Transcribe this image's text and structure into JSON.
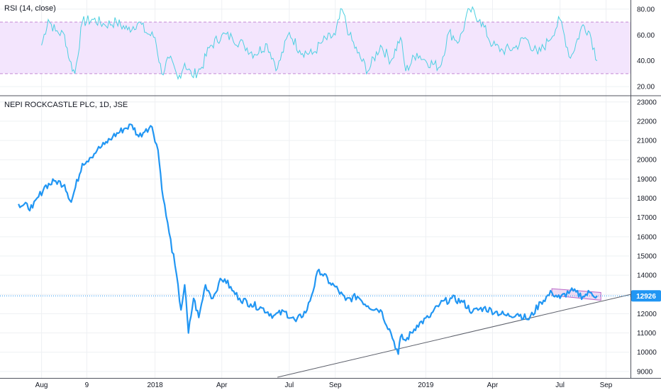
{
  "colors": {
    "price_line": "#2196f3",
    "rsi_line": "#4dd0e1",
    "rsi_band_fill": "#f3e5fd",
    "rsi_band_border": "#c58bd6",
    "grid": "#eef0f3",
    "axis_border": "#50535e",
    "trendline": "#5d606b",
    "channel_fill": "#e1bee7",
    "channel_border": "#ba68c8",
    "last_price_bg": "#2196f3",
    "last_price_line": "#2196f3"
  },
  "chart_data": [
    {
      "type": "line",
      "title": "RSI (14, close)",
      "ylim": [
        14,
        86
      ],
      "y_ticks": [
        "80.00",
        "60.00",
        "40.00",
        "20.00"
      ],
      "y_tick_values": [
        80,
        60,
        40,
        20
      ],
      "band": [
        30,
        70
      ],
      "grid": true,
      "series": [
        {
          "x": [
            "2017-08-01",
            "2017-08-10",
            "2017-08-20",
            "2017-09-01",
            "2017-09-08",
            "2017-09-15",
            "2017-09-25",
            "2017-10-10",
            "2017-10-25",
            "2017-11-10",
            "2017-11-25",
            "2017-12-10",
            "2017-12-20",
            "2018-01-01",
            "2018-01-10",
            "2018-01-20",
            "2018-02-01",
            "2018-02-10",
            "2018-02-20",
            "2018-03-05",
            "2018-03-15",
            "2018-04-01",
            "2018-04-15",
            "2018-05-01",
            "2018-05-15",
            "2018-06-01",
            "2018-06-15",
            "2018-07-01",
            "2018-07-15",
            "2018-08-01",
            "2018-08-15",
            "2018-09-01",
            "2018-09-10",
            "2018-09-20",
            "2018-10-01",
            "2018-10-15",
            "2018-11-01",
            "2018-11-15",
            "2018-11-28",
            "2018-12-05",
            "2018-12-20",
            "2019-01-01",
            "2019-01-20",
            "2019-02-01",
            "2019-02-15",
            "2019-03-01",
            "2019-03-15",
            "2019-04-01",
            "2019-04-15",
            "2019-05-01",
            "2019-05-15",
            "2019-06-01",
            "2019-06-15",
            "2019-07-01",
            "2019-07-15",
            "2019-08-01",
            "2019-08-10",
            "2019-08-20"
          ],
          "values": [
            52,
            72,
            63,
            60,
            40,
            30,
            70,
            72,
            68,
            70,
            64,
            70,
            62,
            58,
            30,
            42,
            26,
            38,
            28,
            35,
            50,
            60,
            58,
            52,
            45,
            53,
            34,
            62,
            48,
            45,
            55,
            60,
            80,
            60,
            46,
            32,
            52,
            40,
            58,
            32,
            46,
            40,
            35,
            62,
            55,
            80,
            72,
            52,
            48,
            50,
            58,
            45,
            55,
            72,
            42,
            68,
            62,
            40
          ]
        }
      ]
    },
    {
      "type": "line",
      "title": "NEPI ROCKCASTLE PLC, 1D, JSE",
      "ylim": [
        8700,
        23250
      ],
      "y_ticks": [
        "23000",
        "22000",
        "21000",
        "20000",
        "19000",
        "18000",
        "17000",
        "16000",
        "15000",
        "14000",
        "13000",
        "12000",
        "11000",
        "10000",
        "9000"
      ],
      "y_tick_values": [
        23000,
        22000,
        21000,
        20000,
        19000,
        18000,
        17000,
        16000,
        15000,
        14000,
        13000,
        12000,
        11000,
        10000,
        9000
      ],
      "x_ticks": [
        "Aug",
        "9",
        "2018",
        "Apr",
        "Jul",
        "Sep",
        "2019",
        "Apr",
        "Jul",
        "Sep"
      ],
      "x_tick_dates": [
        "2017-08-01",
        "2017-10-01",
        "2018-01-01",
        "2018-04-01",
        "2018-07-01",
        "2018-09-01",
        "2019-01-01",
        "2019-04-01",
        "2019-07-01",
        "2019-09-01"
      ],
      "last_price": 12926,
      "last_price_label": "12926",
      "grid": true,
      "series": [
        {
          "x": [
            "2017-07-01",
            "2017-07-20",
            "2017-08-05",
            "2017-08-20",
            "2017-09-01",
            "2017-09-10",
            "2017-09-25",
            "2017-10-05",
            "2017-10-15",
            "2017-10-25",
            "2017-11-05",
            "2017-11-20",
            "2017-12-01",
            "2017-12-10",
            "2017-12-20",
            "2017-12-28",
            "2018-01-05",
            "2018-01-12",
            "2018-01-20",
            "2018-01-28",
            "2018-02-05",
            "2018-02-10",
            "2018-02-15",
            "2018-02-22",
            "2018-03-01",
            "2018-03-10",
            "2018-03-20",
            "2018-03-28",
            "2018-04-05",
            "2018-04-15",
            "2018-04-25",
            "2018-05-10",
            "2018-05-25",
            "2018-06-10",
            "2018-06-25",
            "2018-07-10",
            "2018-07-25",
            "2018-08-10",
            "2018-08-25",
            "2018-09-01",
            "2018-09-15",
            "2018-10-01",
            "2018-10-15",
            "2018-11-01",
            "2018-11-15",
            "2018-11-25",
            "2018-11-28",
            "2018-12-05",
            "2018-12-20",
            "2019-01-05",
            "2019-01-20",
            "2019-02-05",
            "2019-02-20",
            "2019-03-05",
            "2019-03-20",
            "2019-04-05",
            "2019-04-20",
            "2019-05-05",
            "2019-05-20",
            "2019-06-05",
            "2019-06-20",
            "2019-07-01",
            "2019-07-15",
            "2019-08-01",
            "2019-08-10",
            "2019-08-20"
          ],
          "values": [
            17700,
            17500,
            18600,
            18900,
            18700,
            17800,
            19800,
            20100,
            20500,
            20800,
            21200,
            21600,
            21800,
            21200,
            21600,
            21700,
            20500,
            18000,
            16200,
            14500,
            12200,
            13500,
            11000,
            12800,
            11800,
            13500,
            12800,
            13600,
            13800,
            13200,
            12800,
            12500,
            12300,
            11900,
            12100,
            11600,
            12200,
            14300,
            13600,
            13400,
            12700,
            12900,
            12400,
            12200,
            11000,
            9900,
            10800,
            10600,
            11400,
            11800,
            12500,
            12800,
            12600,
            12100,
            12300,
            12100,
            11900,
            12000,
            11700,
            12600,
            13100,
            12800,
            13200,
            12900,
            13100,
            12926
          ]
        }
      ]
    }
  ]
}
